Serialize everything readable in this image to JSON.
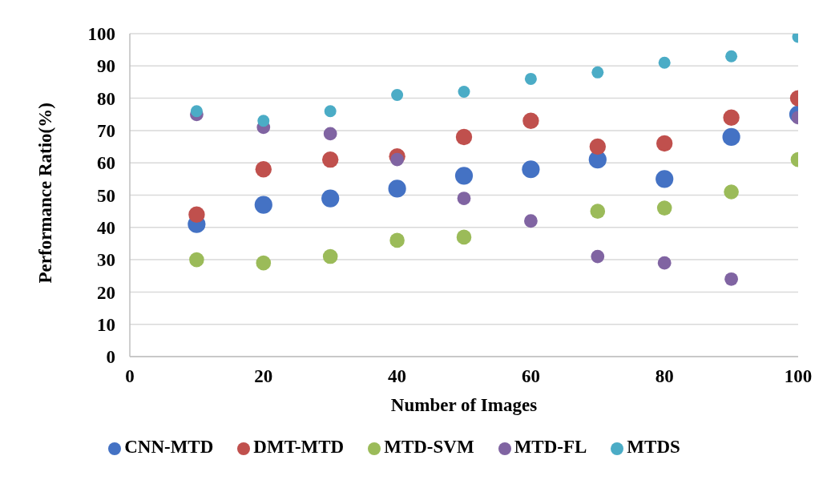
{
  "chart_data": {
    "type": "scatter",
    "xlabel": "Number of Images",
    "ylabel": "Performance Ratio(%)",
    "x": [
      10,
      20,
      30,
      40,
      50,
      60,
      70,
      80,
      90,
      100
    ],
    "xlim": [
      0,
      100
    ],
    "xticks": [
      0,
      20,
      40,
      60,
      80,
      100
    ],
    "ylim": [
      0,
      100
    ],
    "yticks": [
      0,
      10,
      20,
      30,
      40,
      50,
      60,
      70,
      80,
      90,
      100
    ],
    "grid": "y",
    "legend": "bottom",
    "marker": "circle",
    "series": [
      {
        "name": "CNN-MTD",
        "color": "#4472c4",
        "values": [
          41,
          47,
          49,
          52,
          56,
          58,
          61,
          55,
          68,
          75
        ]
      },
      {
        "name": "DMT-MTD",
        "color": "#c0504d",
        "values": [
          44,
          58,
          61,
          62,
          68,
          73,
          65,
          66,
          74,
          80
        ]
      },
      {
        "name": "MTD-SVM",
        "color": "#9bbb59",
        "values": [
          30,
          29,
          31,
          36,
          37,
          null,
          45,
          46,
          51,
          61
        ]
      },
      {
        "name": "MTD-FL",
        "color": "#8064a2",
        "values": [
          75,
          71,
          69,
          61,
          49,
          42,
          31,
          29,
          24,
          74
        ]
      },
      {
        "name": "MTDS",
        "color": "#4bacc6",
        "values": [
          76,
          73,
          76,
          81,
          82,
          86,
          88,
          91,
          93,
          99
        ]
      }
    ]
  }
}
